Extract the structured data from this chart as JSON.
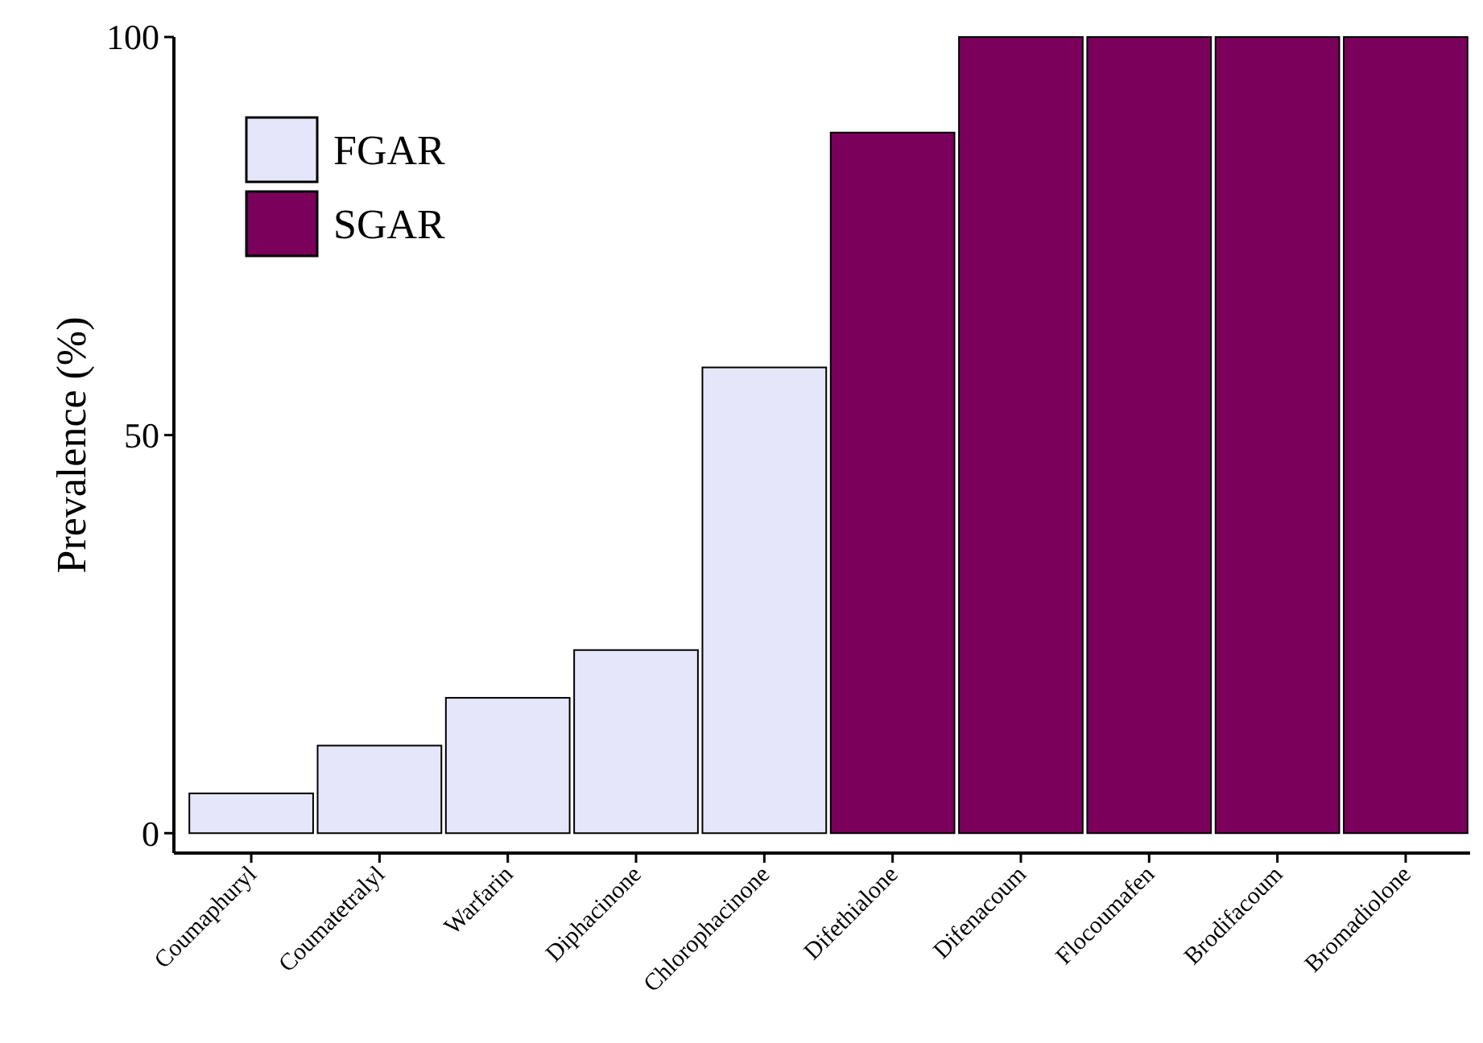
{
  "chart_data": {
    "type": "bar",
    "ylabel": "Prevalence (%)",
    "categories": [
      "Coumaphuryl",
      "Coumatetralyl",
      "Warfarin",
      "Diphacinone",
      "Chlorophacinone",
      "Difethialone",
      "Difenacoum",
      "Flocoumafen",
      "Brodifacoum",
      "Bromadiolone"
    ],
    "series": [
      {
        "name": "FGAR",
        "color": "#e6e6fa",
        "values": [
          5,
          11,
          17,
          23,
          58.5,
          null,
          null,
          null,
          null,
          null
        ]
      },
      {
        "name": "SGAR",
        "color": "#7b005c",
        "values": [
          null,
          null,
          null,
          null,
          null,
          88,
          100,
          100,
          100,
          100
        ]
      }
    ],
    "ylim": [
      -2.5,
      100
    ],
    "yticks": [
      0,
      50,
      100
    ],
    "grid": false,
    "legend": "top left"
  }
}
